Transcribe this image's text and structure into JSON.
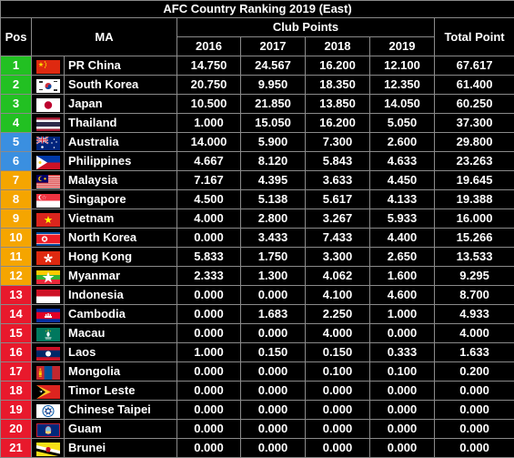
{
  "title": "AFC Country Ranking 2019 (East)",
  "headers": {
    "pos": "Pos",
    "ma": "MA",
    "club_points": "Club Points",
    "years": [
      "2016",
      "2017",
      "2018",
      "2019"
    ],
    "total": "Total Point"
  },
  "colors": {
    "green": "#22c022",
    "blue": "#3a8fe0",
    "orange": "#f5a500",
    "red": "#e8192c"
  },
  "rows": [
    {
      "pos": "1",
      "ma": "PR China",
      "flag": "china",
      "band": "green",
      "p2016": "14.750",
      "p2017": "24.567",
      "p2018": "16.200",
      "p2019": "12.100",
      "total": "67.617"
    },
    {
      "pos": "2",
      "ma": "South Korea",
      "flag": "south-korea",
      "band": "green",
      "p2016": "20.750",
      "p2017": "9.950",
      "p2018": "18.350",
      "p2019": "12.350",
      "total": "61.400"
    },
    {
      "pos": "3",
      "ma": "Japan",
      "flag": "japan",
      "band": "green",
      "p2016": "10.500",
      "p2017": "21.850",
      "p2018": "13.850",
      "p2019": "14.050",
      "total": "60.250"
    },
    {
      "pos": "4",
      "ma": "Thailand",
      "flag": "thailand",
      "band": "green",
      "p2016": "1.000",
      "p2017": "15.050",
      "p2018": "16.200",
      "p2019": "5.050",
      "total": "37.300"
    },
    {
      "pos": "5",
      "ma": "Australia",
      "flag": "australia",
      "band": "blue",
      "p2016": "14.000",
      "p2017": "5.900",
      "p2018": "7.300",
      "p2019": "2.600",
      "total": "29.800"
    },
    {
      "pos": "6",
      "ma": "Philippines",
      "flag": "philippines",
      "band": "blue",
      "p2016": "4.667",
      "p2017": "8.120",
      "p2018": "5.843",
      "p2019": "4.633",
      "total": "23.263"
    },
    {
      "pos": "7",
      "ma": "Malaysia",
      "flag": "malaysia",
      "band": "orange",
      "p2016": "7.167",
      "p2017": "4.395",
      "p2018": "3.633",
      "p2019": "4.450",
      "total": "19.645"
    },
    {
      "pos": "8",
      "ma": "Singapore",
      "flag": "singapore",
      "band": "orange",
      "p2016": "4.500",
      "p2017": "5.138",
      "p2018": "5.617",
      "p2019": "4.133",
      "total": "19.388"
    },
    {
      "pos": "9",
      "ma": "Vietnam",
      "flag": "vietnam",
      "band": "orange",
      "p2016": "4.000",
      "p2017": "2.800",
      "p2018": "3.267",
      "p2019": "5.933",
      "total": "16.000"
    },
    {
      "pos": "10",
      "ma": "North Korea",
      "flag": "north-korea",
      "band": "orange",
      "p2016": "0.000",
      "p2017": "3.433",
      "p2018": "7.433",
      "p2019": "4.400",
      "total": "15.266"
    },
    {
      "pos": "11",
      "ma": "Hong Kong",
      "flag": "hong-kong",
      "band": "orange",
      "p2016": "5.833",
      "p2017": "1.750",
      "p2018": "3.300",
      "p2019": "2.650",
      "total": "13.533"
    },
    {
      "pos": "12",
      "ma": "Myanmar",
      "flag": "myanmar",
      "band": "orange",
      "p2016": "2.333",
      "p2017": "1.300",
      "p2018": "4.062",
      "p2019": "1.600",
      "total": "9.295"
    },
    {
      "pos": "13",
      "ma": "Indonesia",
      "flag": "indonesia",
      "band": "red",
      "p2016": "0.000",
      "p2017": "0.000",
      "p2018": "4.100",
      "p2019": "4.600",
      "total": "8.700"
    },
    {
      "pos": "14",
      "ma": "Cambodia",
      "flag": "cambodia",
      "band": "red",
      "p2016": "0.000",
      "p2017": "1.683",
      "p2018": "2.250",
      "p2019": "1.000",
      "total": "4.933"
    },
    {
      "pos": "15",
      "ma": "Macau",
      "flag": "macau",
      "band": "red",
      "p2016": "0.000",
      "p2017": "0.000",
      "p2018": "4.000",
      "p2019": "0.000",
      "total": "4.000"
    },
    {
      "pos": "16",
      "ma": "Laos",
      "flag": "laos",
      "band": "red",
      "p2016": "1.000",
      "p2017": "0.150",
      "p2018": "0.150",
      "p2019": "0.333",
      "total": "1.633"
    },
    {
      "pos": "17",
      "ma": "Mongolia",
      "flag": "mongolia",
      "band": "red",
      "p2016": "0.000",
      "p2017": "0.000",
      "p2018": "0.100",
      "p2019": "0.100",
      "total": "0.200"
    },
    {
      "pos": "18",
      "ma": "Timor Leste",
      "flag": "timor-leste",
      "band": "red",
      "p2016": "0.000",
      "p2017": "0.000",
      "p2018": "0.000",
      "p2019": "0.000",
      "total": "0.000"
    },
    {
      "pos": "19",
      "ma": "Chinese Taipei",
      "flag": "chinese-taipei",
      "band": "red",
      "p2016": "0.000",
      "p2017": "0.000",
      "p2018": "0.000",
      "p2019": "0.000",
      "total": "0.000"
    },
    {
      "pos": "20",
      "ma": "Guam",
      "flag": "guam",
      "band": "red",
      "p2016": "0.000",
      "p2017": "0.000",
      "p2018": "0.000",
      "p2019": "0.000",
      "total": "0.000"
    },
    {
      "pos": "21",
      "ma": "Brunei",
      "flag": "brunei",
      "band": "red",
      "p2016": "0.000",
      "p2017": "0.000",
      "p2018": "0.000",
      "p2019": "0.000",
      "total": "0.000"
    }
  ]
}
